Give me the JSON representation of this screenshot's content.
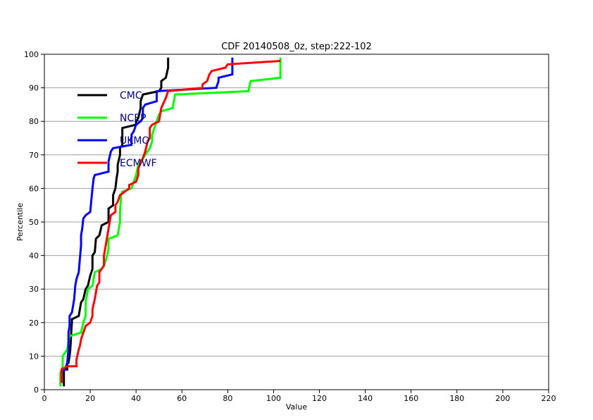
{
  "chart_data": {
    "type": "line",
    "title": "CDF 20140508_0z, step:222-102",
    "xlabel": "Value",
    "ylabel": "Percentile",
    "xlim": [
      0,
      220
    ],
    "ylim": [
      0,
      100
    ],
    "x_ticks": [
      "0",
      "20",
      "40",
      "60",
      "80",
      "100",
      "120",
      "140",
      "160",
      "180",
      "200",
      "220"
    ],
    "y_ticks": [
      "0",
      "10",
      "20",
      "30",
      "40",
      "50",
      "60",
      "70",
      "80",
      "90",
      "100"
    ],
    "grid": "horizontal",
    "legend_position": "upper-left",
    "series": [
      {
        "name": "CMC",
        "color": "#000000",
        "points": [
          [
            8.5,
            1
          ],
          [
            8.5,
            6
          ],
          [
            10,
            6
          ],
          [
            10,
            8
          ],
          [
            10.5,
            8
          ],
          [
            11,
            10
          ],
          [
            11.3,
            12
          ],
          [
            11.5,
            14
          ],
          [
            11.7,
            17
          ],
          [
            12,
            20
          ],
          [
            12,
            21
          ],
          [
            15,
            22
          ],
          [
            16,
            26
          ],
          [
            17,
            27
          ],
          [
            18,
            30
          ],
          [
            19,
            31
          ],
          [
            20,
            34
          ],
          [
            21,
            36
          ],
          [
            21,
            40
          ],
          [
            22,
            41
          ],
          [
            22.5,
            45
          ],
          [
            24,
            46
          ],
          [
            25,
            49
          ],
          [
            28,
            50
          ],
          [
            28,
            54
          ],
          [
            30,
            55
          ],
          [
            30,
            58
          ],
          [
            31,
            60
          ],
          [
            31.5,
            63
          ],
          [
            32,
            65
          ],
          [
            32,
            67
          ],
          [
            33,
            70
          ],
          [
            33,
            72
          ],
          [
            34,
            73
          ],
          [
            34,
            75
          ],
          [
            34,
            78
          ],
          [
            40,
            79
          ],
          [
            40,
            80
          ],
          [
            41,
            81
          ],
          [
            42,
            84
          ],
          [
            42,
            86
          ],
          [
            43,
            88
          ],
          [
            50,
            89
          ],
          [
            51,
            90
          ],
          [
            51,
            92
          ],
          [
            53,
            93
          ],
          [
            54,
            96
          ],
          [
            54,
            99
          ]
        ]
      },
      {
        "name": "NCEP",
        "color": "#00ff00",
        "points": [
          [
            7,
            1
          ],
          [
            7,
            5
          ],
          [
            8,
            7
          ],
          [
            8,
            10
          ],
          [
            9,
            11
          ],
          [
            10,
            12
          ],
          [
            11,
            16
          ],
          [
            16,
            17
          ],
          [
            17,
            20
          ],
          [
            18,
            22
          ],
          [
            18,
            26
          ],
          [
            19,
            30
          ],
          [
            21,
            31
          ],
          [
            22,
            35
          ],
          [
            25,
            36
          ],
          [
            26,
            37
          ],
          [
            27,
            39
          ],
          [
            28,
            42
          ],
          [
            28,
            45
          ],
          [
            32,
            46
          ],
          [
            33,
            50
          ],
          [
            33,
            53
          ],
          [
            33.5,
            58
          ],
          [
            34,
            59
          ],
          [
            38,
            60
          ],
          [
            40,
            64
          ],
          [
            41,
            67
          ],
          [
            42,
            68
          ],
          [
            44,
            70
          ],
          [
            46,
            72
          ],
          [
            47,
            74
          ],
          [
            47,
            76
          ],
          [
            48,
            78
          ],
          [
            49,
            80
          ],
          [
            50,
            82
          ],
          [
            51,
            83
          ],
          [
            56,
            84
          ],
          [
            57,
            88
          ],
          [
            89,
            89
          ],
          [
            90,
            92
          ],
          [
            103,
            93
          ],
          [
            103,
            99
          ]
        ]
      },
      {
        "name": "UKMO",
        "color": "#0000ff",
        "points": [
          [
            7.5,
            2
          ],
          [
            7.5,
            5
          ],
          [
            9,
            6
          ],
          [
            10,
            8
          ],
          [
            10.5,
            12
          ],
          [
            10.5,
            17
          ],
          [
            11,
            19
          ],
          [
            11,
            22
          ],
          [
            12,
            23
          ],
          [
            13,
            27
          ],
          [
            13.5,
            31
          ],
          [
            14,
            33
          ],
          [
            15,
            35
          ],
          [
            15.5,
            39
          ],
          [
            16,
            43
          ],
          [
            16,
            46
          ],
          [
            16.5,
            48
          ],
          [
            17,
            51
          ],
          [
            18,
            52
          ],
          [
            20,
            53
          ],
          [
            21,
            60
          ],
          [
            21.5,
            63
          ],
          [
            22,
            64
          ],
          [
            28,
            65
          ],
          [
            28,
            68
          ],
          [
            29,
            71
          ],
          [
            30,
            72
          ],
          [
            38,
            73
          ],
          [
            38,
            76
          ],
          [
            39,
            77
          ],
          [
            40,
            79
          ],
          [
            42,
            80
          ],
          [
            43,
            81
          ],
          [
            43,
            84
          ],
          [
            44,
            85
          ],
          [
            49,
            86
          ],
          [
            49,
            89
          ],
          [
            75,
            90
          ],
          [
            76,
            92
          ],
          [
            76,
            93
          ],
          [
            82,
            94
          ],
          [
            82,
            99
          ]
        ]
      },
      {
        "name": "ECMWF",
        "color": "#ff0000",
        "points": [
          [
            7.5,
            2
          ],
          [
            7.5,
            6
          ],
          [
            10,
            7
          ],
          [
            14,
            7
          ],
          [
            14,
            9
          ],
          [
            15,
            12
          ],
          [
            15.5,
            13
          ],
          [
            16,
            15
          ],
          [
            17,
            17
          ],
          [
            18,
            19
          ],
          [
            20,
            20
          ],
          [
            21,
            22
          ],
          [
            21,
            24
          ],
          [
            22,
            27
          ],
          [
            22.5,
            29
          ],
          [
            23,
            31
          ],
          [
            24,
            32
          ],
          [
            24,
            35
          ],
          [
            26,
            37
          ],
          [
            26,
            40
          ],
          [
            27,
            44
          ],
          [
            27.5,
            46
          ],
          [
            28,
            48
          ],
          [
            29,
            52
          ],
          [
            31,
            53
          ],
          [
            31,
            55
          ],
          [
            32,
            56
          ],
          [
            33,
            58
          ],
          [
            37,
            60
          ],
          [
            37,
            61
          ],
          [
            40,
            62
          ],
          [
            41,
            64
          ],
          [
            41,
            66
          ],
          [
            43,
            69
          ],
          [
            44,
            71
          ],
          [
            45,
            74
          ],
          [
            46,
            75
          ],
          [
            46,
            78
          ],
          [
            47,
            79
          ],
          [
            50,
            80
          ],
          [
            51,
            84
          ],
          [
            53,
            87
          ],
          [
            54,
            89
          ],
          [
            69,
            90
          ],
          [
            69,
            91
          ],
          [
            71,
            92
          ],
          [
            72,
            94
          ],
          [
            73,
            95
          ],
          [
            79,
            96
          ],
          [
            80,
            97
          ],
          [
            103,
            98
          ]
        ]
      }
    ]
  }
}
